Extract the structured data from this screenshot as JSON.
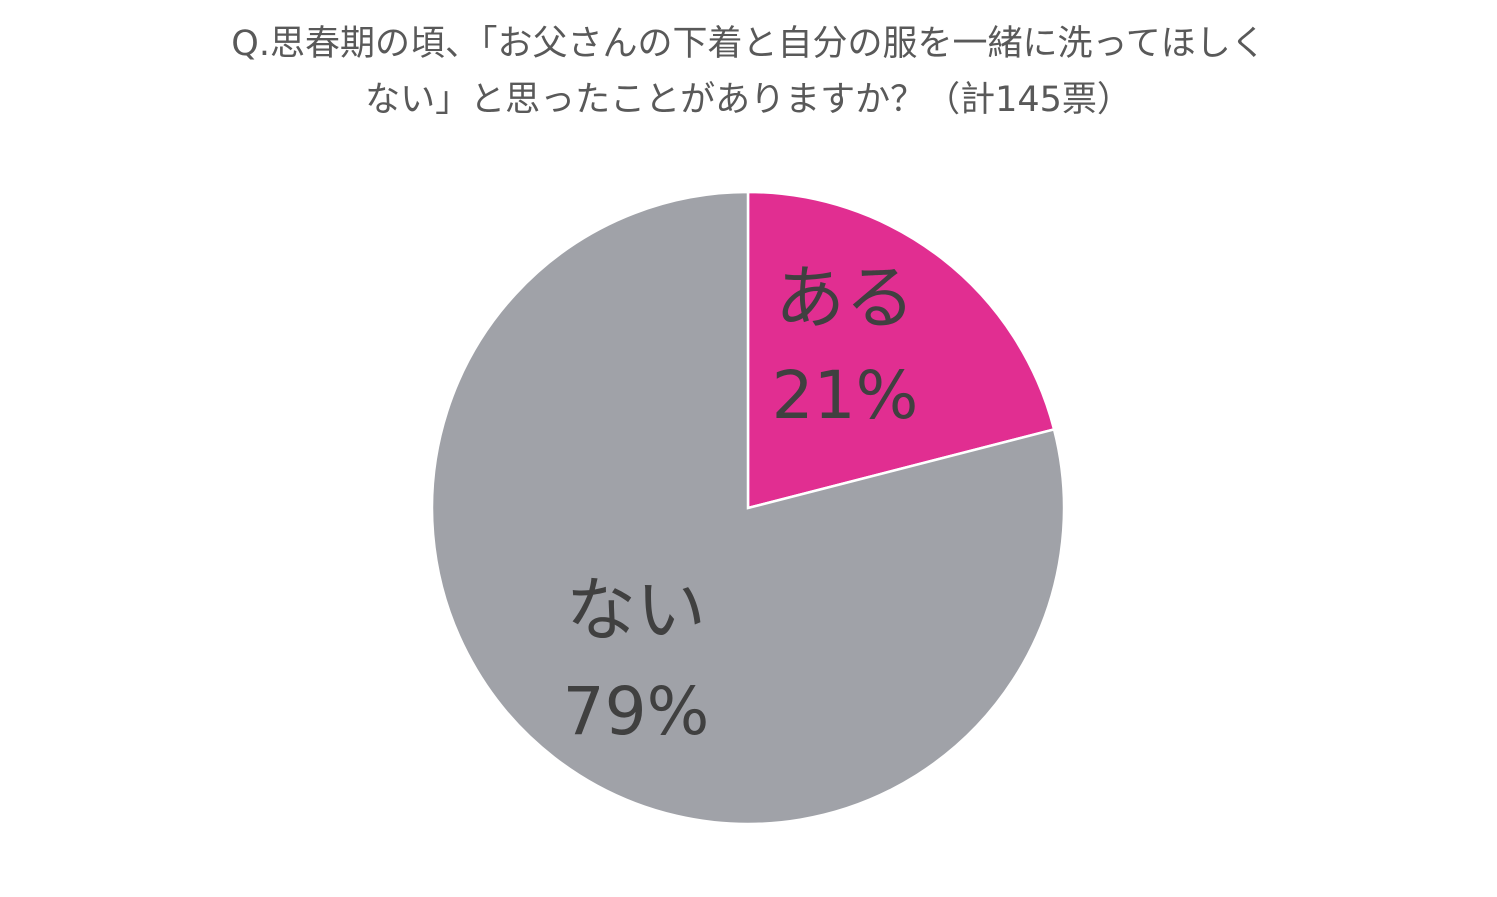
{
  "chart_data": {
    "type": "pie",
    "title_lines": [
      "Q.思春期の頃、「お父さんの下着と自分の服を一緒に洗ってほしく",
      "ない」と思ったことがありますか？（計145票）"
    ],
    "slices": [
      {
        "label": "ある",
        "value": 21,
        "value_label": "21%",
        "color": "#E12E91"
      },
      {
        "label": "ない",
        "value": 79,
        "value_label": "79%",
        "color": "#A0A2A8"
      }
    ],
    "legend": "none",
    "start_angle": "12 o'clock, clockwise"
  }
}
